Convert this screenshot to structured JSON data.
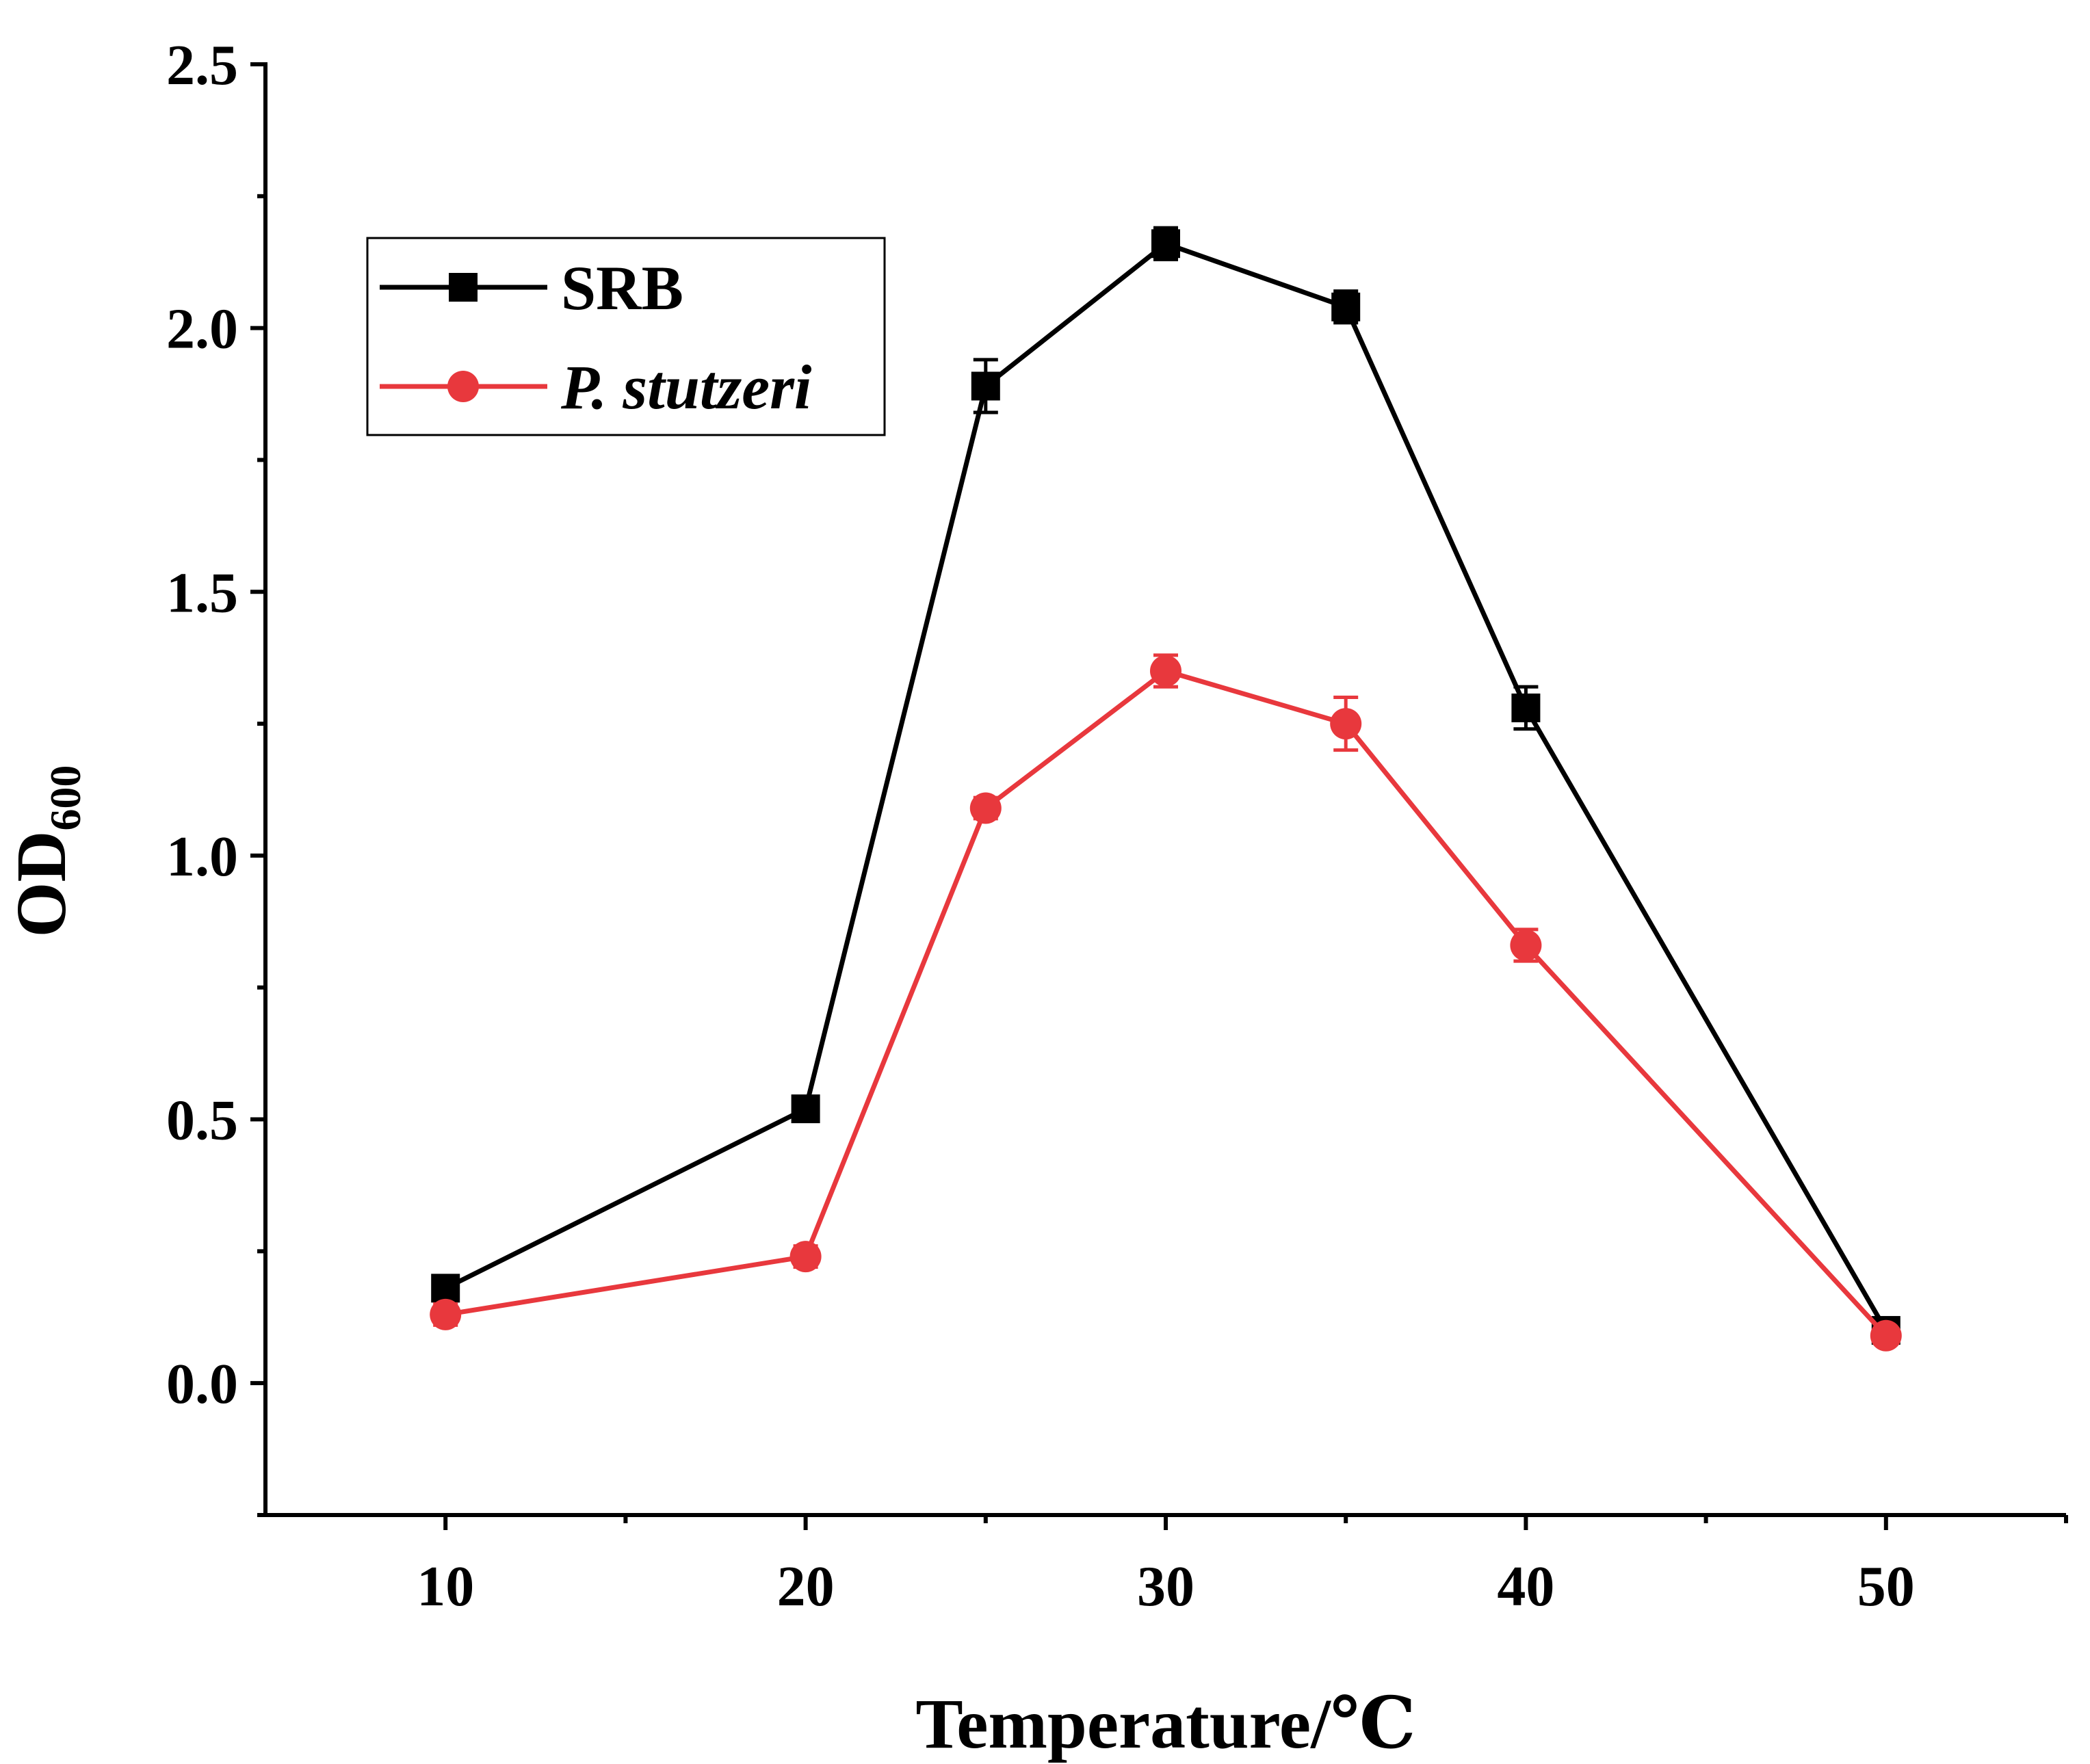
{
  "chart_data": {
    "type": "line",
    "title": "",
    "xlabel": "Temperature/℃",
    "ylabel": {
      "main": "OD",
      "subscript": "600"
    },
    "xlim": [
      5,
      55
    ],
    "ylim": [
      -0.25,
      2.5
    ],
    "x_ticks": [
      10,
      20,
      30,
      40,
      50
    ],
    "x_tick_labels": [
      "10",
      "20",
      "30",
      "40",
      "50"
    ],
    "x_minor_ticks": [
      15,
      25,
      35,
      45,
      55
    ],
    "y_ticks": [
      0.0,
      0.5,
      1.0,
      1.5,
      2.0,
      2.5
    ],
    "y_tick_labels": [
      "0.0",
      "0.5",
      "1.0",
      "1.5",
      "2.0",
      "2.5"
    ],
    "y_minor_ticks": [
      -0.25,
      0.25,
      0.75,
      1.25,
      1.75,
      2.25
    ],
    "grid": false,
    "legend_position": "top-left",
    "series": [
      {
        "name": "SRB",
        "italic": false,
        "color": "#000000",
        "marker": "square",
        "x": [
          10,
          20,
          25,
          30,
          35,
          40,
          50
        ],
        "y": [
          0.18,
          0.52,
          1.89,
          2.16,
          2.04,
          1.28,
          0.1
        ],
        "error": [
          0.02,
          0.02,
          0.05,
          0.03,
          0.03,
          0.04,
          0.01
        ]
      },
      {
        "name": "P. stutzeri",
        "italic": true,
        "color": "#e8383d",
        "marker": "circle",
        "x": [
          10,
          20,
          25,
          30,
          35,
          40,
          50
        ],
        "y": [
          0.13,
          0.24,
          1.09,
          1.35,
          1.25,
          0.83,
          0.09
        ],
        "error": [
          0.02,
          0.02,
          0.02,
          0.03,
          0.05,
          0.03,
          0.01
        ]
      }
    ]
  }
}
